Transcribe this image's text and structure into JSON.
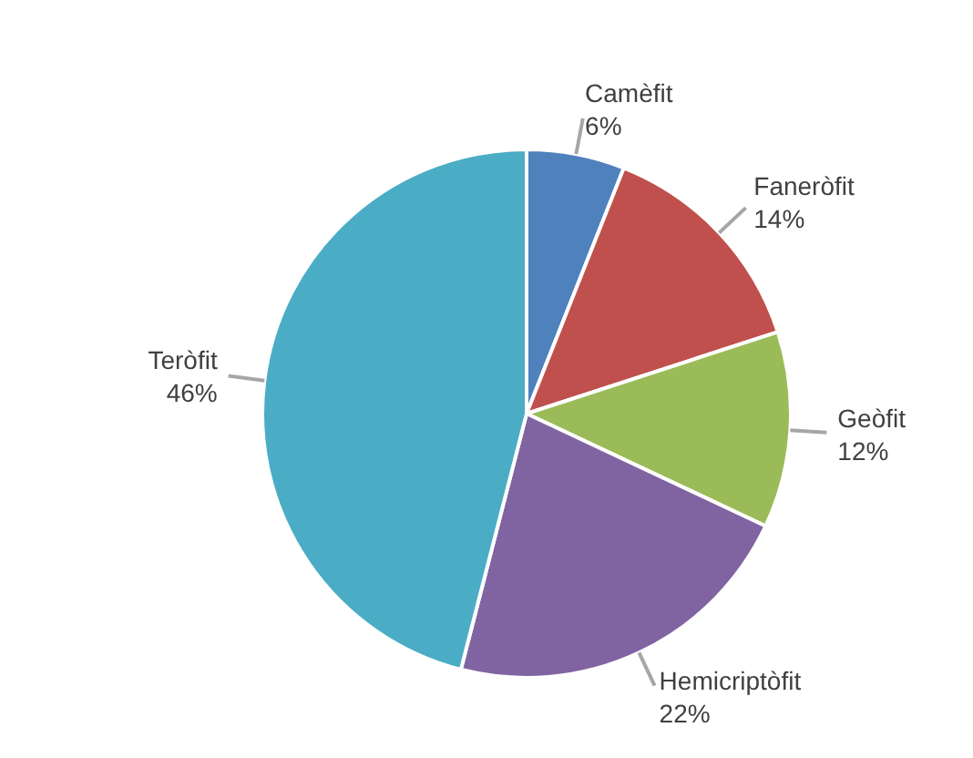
{
  "chart_data": {
    "type": "pie",
    "categories": [
      "Camèfit",
      "Faneròfit",
      "Geòfit",
      "Hemicriptòfit",
      "Teròfit"
    ],
    "values": [
      6,
      14,
      12,
      22,
      46
    ],
    "value_labels": [
      "6%",
      "14%",
      "12%",
      "22%",
      "46%"
    ],
    "colors": [
      "#4f81bd",
      "#c0504d",
      "#9bbb59",
      "#8064a2",
      "#4bacc6"
    ]
  }
}
